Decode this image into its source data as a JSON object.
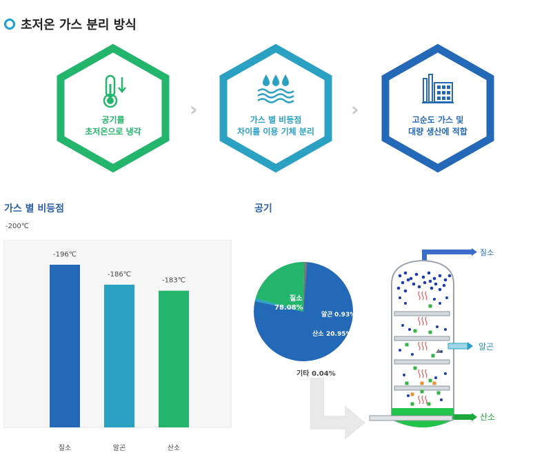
{
  "title": "초저온 가스 분리 방식",
  "steps": [
    {
      "line1": "공기를",
      "line2": "초저온으로 냉각",
      "color": "#24b56c",
      "icon": "thermometer-icon"
    },
    {
      "line1": "가스 별 비등점",
      "line2": "차이를 이용 기체 분리",
      "color": "#2aa0c3",
      "icon": "water-drops-icon"
    },
    {
      "line1": "고순도 가스 및",
      "line2": "대량 생산에 적합",
      "color": "#2468b8",
      "icon": "factory-icon"
    }
  ],
  "arrow_glyph": "›",
  "section_boiling": "가스 별 비등점",
  "section_air": "공기",
  "temp_note": "-200℃",
  "chart_data": {
    "type": "bar",
    "categories": [
      "질소",
      "알곤",
      "산소"
    ],
    "values": [
      -196,
      -186,
      -183
    ],
    "value_labels": [
      "-196℃",
      "-186℃",
      "-183℃"
    ],
    "colors": [
      "#2468b8",
      "#2aa0c3",
      "#24b56c"
    ],
    "ylim": [
      -200,
      -170
    ],
    "ylabel": "-200℃",
    "grid": false
  },
  "pie": {
    "slices": [
      {
        "name": "질소",
        "value": 78.08,
        "label": "78.08%",
        "color": "#2468b8"
      },
      {
        "name": "알곤",
        "value": 0.93,
        "label": "0.93%",
        "color": "#2aa0c3"
      },
      {
        "name": "산소",
        "value": 20.95,
        "label": "20.95%",
        "color": "#24b56c"
      },
      {
        "name": "기타",
        "value": 0.04,
        "label": "0.04%",
        "color": "#777777"
      }
    ]
  },
  "tower": {
    "out_nitrogen": "질소",
    "out_argon": "알곤",
    "out_oxygen": "산소",
    "nitrogen_color": "#2468b8",
    "argon_color": "#2aa0c3",
    "oxygen_color": "#1ea83c"
  }
}
